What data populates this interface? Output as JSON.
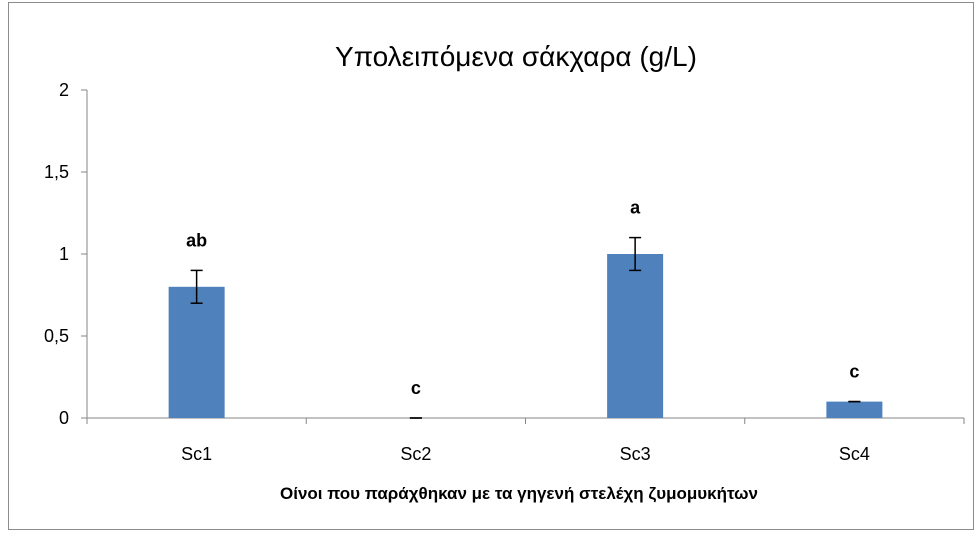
{
  "chart_data": {
    "type": "bar",
    "title": "Υπολειπόμενα σάκχαρα (g/L)",
    "xlabel": "Οίνοι που παράχθηκαν με τα γηγενή στελέχη ζυμομυκήτων",
    "ylabel": "",
    "categories": [
      "Sc1",
      "Sc2",
      "Sc3",
      "Sc4"
    ],
    "values": [
      0.8,
      0.0,
      1.0,
      0.1
    ],
    "errors": [
      0.1,
      0.0,
      0.1,
      0.0
    ],
    "significance_labels": [
      "ab",
      "c",
      "a",
      "c"
    ],
    "ylim": [
      0,
      2
    ],
    "yticks": [
      0,
      0.5,
      1,
      1.5,
      2
    ],
    "ytick_labels": [
      "0",
      "0,5",
      "1",
      "1,5",
      "2"
    ],
    "bar_color": "#4f81bd",
    "grid": false,
    "legend": "none"
  }
}
